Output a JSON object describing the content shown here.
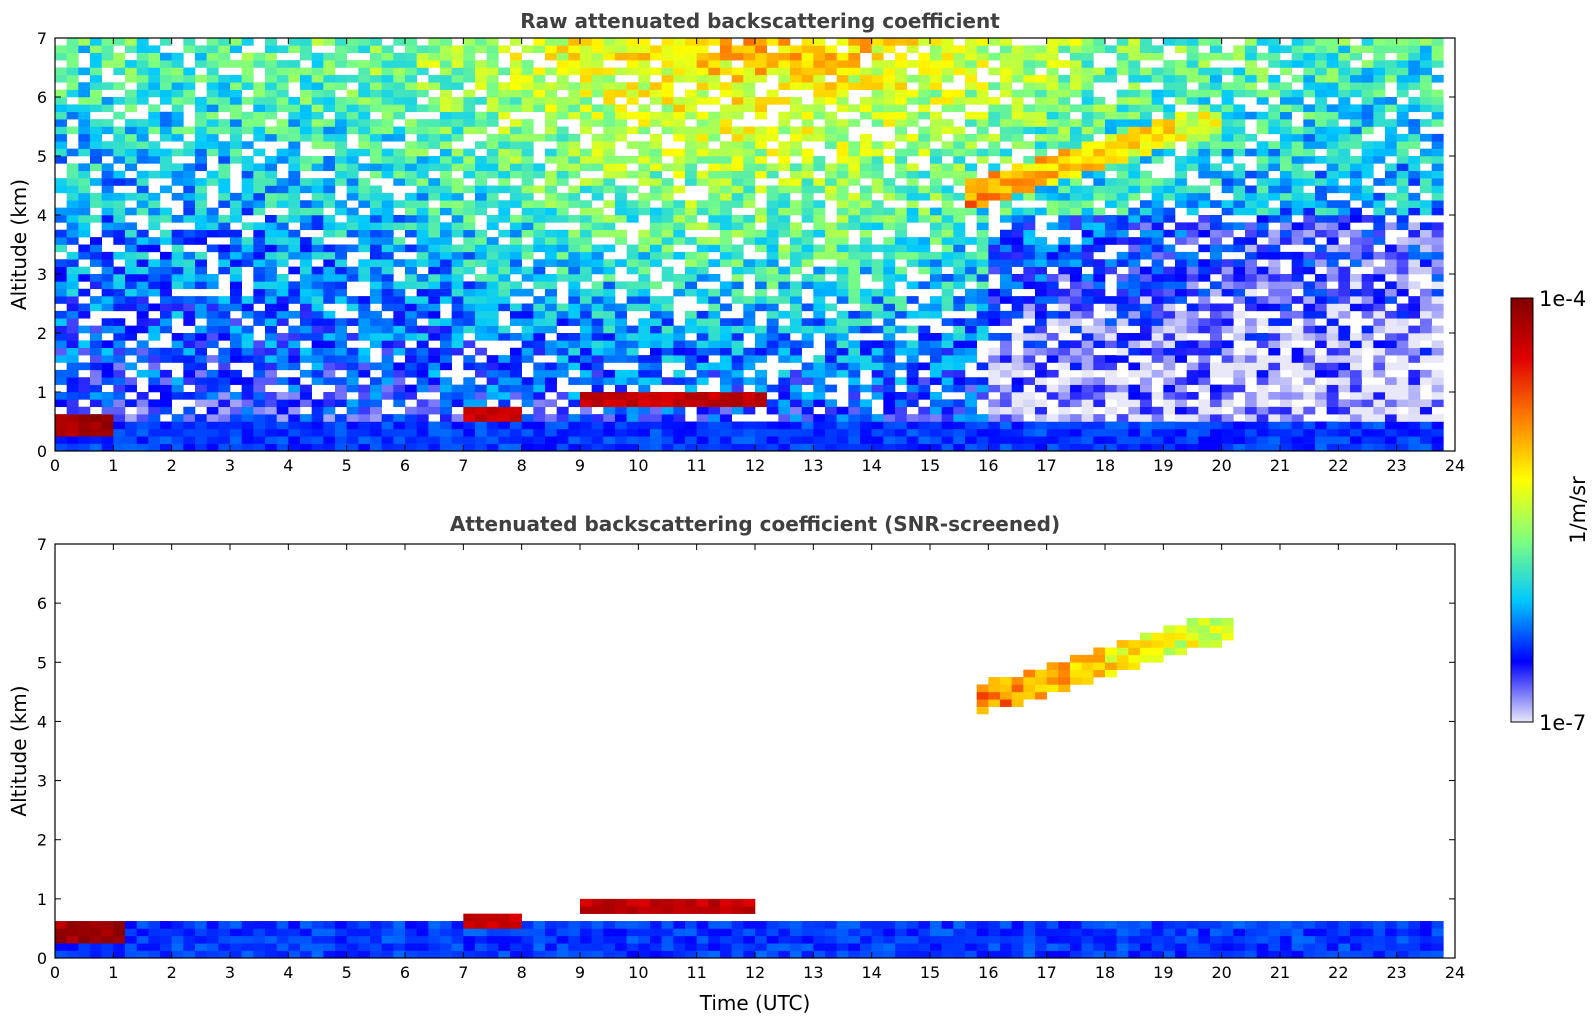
{
  "chart_data": [
    {
      "type": "heatmap",
      "title": "Raw attenuated backscattering coefficient",
      "xlabel": "",
      "ylabel": "Altitude (km)",
      "xlim": [
        0,
        24
      ],
      "ylim": [
        0,
        7
      ],
      "xticks": [
        "0",
        "1",
        "2",
        "3",
        "4",
        "5",
        "6",
        "7",
        "8",
        "9",
        "10",
        "11",
        "12",
        "13",
        "14",
        "15",
        "16",
        "17",
        "18",
        "19",
        "20",
        "21",
        "22",
        "23",
        "24"
      ],
      "yticks": [
        "0",
        "1",
        "2",
        "3",
        "4",
        "5",
        "6",
        "7"
      ],
      "data_end_time": 23.8,
      "features": [
        {
          "name": "boundary-layer",
          "t0": 0,
          "t1": 23.8,
          "z0": 0,
          "z1": 0.45,
          "level": 0.18
        },
        {
          "name": "cloud-early",
          "t0": 0,
          "t1": 1.0,
          "z0": 0.3,
          "z1": 0.6,
          "level": 0.95
        },
        {
          "name": "cloud-7-8",
          "t0": 7.0,
          "t1": 8.1,
          "z0": 0.5,
          "z1": 0.75,
          "level": 0.9
        },
        {
          "name": "cloud-9-12",
          "t0": 9.0,
          "t1": 12.1,
          "z0": 0.75,
          "z1": 1.0,
          "level": 0.9
        },
        {
          "name": "mid-level-plume",
          "t0": 15.7,
          "t1": 20.0,
          "z0": 4.1,
          "z1": 5.8,
          "level": 0.7
        }
      ],
      "grid": false
    },
    {
      "type": "heatmap",
      "title": "Attenuated backscattering coefficient (SNR-screened)",
      "xlabel": "Time (UTC)",
      "ylabel": "Altitude (km)",
      "xlim": [
        0,
        24
      ],
      "ylim": [
        0,
        7
      ],
      "xticks": [
        "0",
        "1",
        "2",
        "3",
        "4",
        "5",
        "6",
        "7",
        "8",
        "9",
        "10",
        "11",
        "12",
        "13",
        "14",
        "15",
        "16",
        "17",
        "18",
        "19",
        "20",
        "21",
        "22",
        "23",
        "24"
      ],
      "yticks": [
        "0",
        "1",
        "2",
        "3",
        "4",
        "5",
        "6",
        "7"
      ],
      "data_end_time": 23.8,
      "features": [
        {
          "name": "boundary-layer",
          "t0": 0,
          "t1": 23.8,
          "z0": 0,
          "z1": 0.6,
          "level": 0.18
        },
        {
          "name": "cloud-early",
          "t0": 0,
          "t1": 1.2,
          "z0": 0.3,
          "z1": 0.65,
          "level": 0.95
        },
        {
          "name": "cloud-7-8",
          "t0": 7.0,
          "t1": 8.1,
          "z0": 0.45,
          "z1": 0.75,
          "level": 0.9
        },
        {
          "name": "cloud-9-12",
          "t0": 9.0,
          "t1": 12.0,
          "z0": 0.7,
          "z1": 1.0,
          "level": 0.9
        },
        {
          "name": "mid-level-plume",
          "t0": 15.8,
          "t1": 20.2,
          "z0": 4.1,
          "z1": 5.7,
          "level": 0.7
        }
      ],
      "grid": false
    }
  ],
  "colorbar": {
    "max_label": "1e-4",
    "min_label": "1e-7",
    "unit_label": "1/m/sr",
    "colormap": [
      "#e8e8f8",
      "#0000ff",
      "#00c8ff",
      "#7fff7f",
      "#ffff00",
      "#ff8000",
      "#e00000",
      "#800000"
    ]
  }
}
